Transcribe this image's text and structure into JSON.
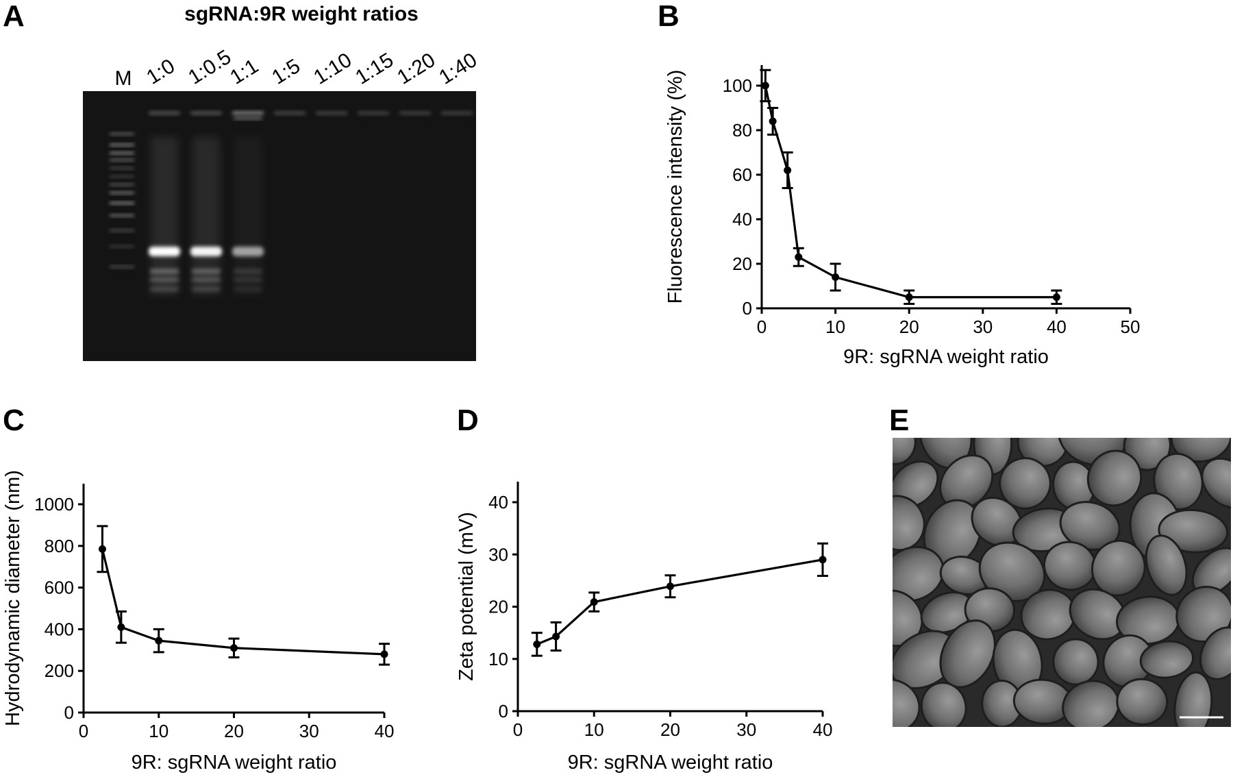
{
  "panels": {
    "A": "A",
    "B": "B",
    "C": "C",
    "D": "D",
    "E": "E"
  },
  "gel": {
    "title": "sgRNA:9R weight ratios",
    "marker_label": "M",
    "lanes": [
      {
        "label": "1:0",
        "band_intensity": 1.0,
        "well_intensity": 0.25
      },
      {
        "label": "1:0.5",
        "band_intensity": 0.95,
        "well_intensity": 0.25
      },
      {
        "label": "1:1",
        "band_intensity": 0.45,
        "well_intensity": 0.7
      },
      {
        "label": "1:5",
        "band_intensity": 0.0,
        "well_intensity": 0.15
      },
      {
        "label": "1:10",
        "band_intensity": 0.0,
        "well_intensity": 0.12
      },
      {
        "label": "1:15",
        "band_intensity": 0.0,
        "well_intensity": 0.1
      },
      {
        "label": "1:20",
        "band_intensity": 0.0,
        "well_intensity": 0.1
      },
      {
        "label": "1:40",
        "band_intensity": 0.0,
        "well_intensity": 0.1
      }
    ]
  },
  "chart_data": [
    {
      "id": "B",
      "type": "line",
      "title": "",
      "xlabel": "9R: sgRNA weight ratio",
      "ylabel": "Fluorescence intensity (%)",
      "xlim": [
        0,
        50
      ],
      "ylim": [
        0,
        100
      ],
      "xticks": [
        0,
        10,
        20,
        30,
        40,
        50
      ],
      "yticks": [
        0,
        20,
        40,
        60,
        80,
        100
      ],
      "grid": false,
      "series": [
        {
          "x": [
            0.5,
            1.5,
            3.5,
            5,
            10,
            20,
            40
          ],
          "y": [
            100,
            84,
            62,
            23,
            14,
            5,
            5
          ],
          "error": [
            7,
            6,
            8,
            4,
            6,
            3,
            3
          ]
        }
      ]
    },
    {
      "id": "C",
      "type": "line",
      "title": "",
      "xlabel": "9R: sgRNA weight ratio",
      "ylabel": "Hydrodynamic diameter (nm)",
      "xlim": [
        0,
        40
      ],
      "ylim": [
        0,
        1000
      ],
      "xticks": [
        0,
        10,
        20,
        30,
        40
      ],
      "yticks": [
        0,
        200,
        400,
        600,
        800,
        1000
      ],
      "grid": false,
      "series": [
        {
          "x": [
            2.5,
            5,
            10,
            20,
            40
          ],
          "y": [
            785,
            410,
            345,
            310,
            280
          ],
          "error": [
            110,
            75,
            55,
            45,
            50
          ]
        }
      ]
    },
    {
      "id": "D",
      "type": "line",
      "title": "",
      "xlabel": "9R: sgRNA weight ratio",
      "ylabel": "Zeta potential (mV)",
      "xlim": [
        0,
        40
      ],
      "ylim": [
        0,
        40
      ],
      "xticks": [
        0,
        10,
        20,
        30,
        40
      ],
      "yticks": [
        0,
        10,
        20,
        30,
        40
      ],
      "grid": false,
      "series": [
        {
          "x": [
            2.5,
            5,
            10,
            20,
            40
          ],
          "y": [
            12.8,
            14.3,
            20.9,
            23.9,
            29
          ],
          "error": [
            2.2,
            2.7,
            1.8,
            2.1,
            3.1
          ]
        }
      ]
    }
  ]
}
